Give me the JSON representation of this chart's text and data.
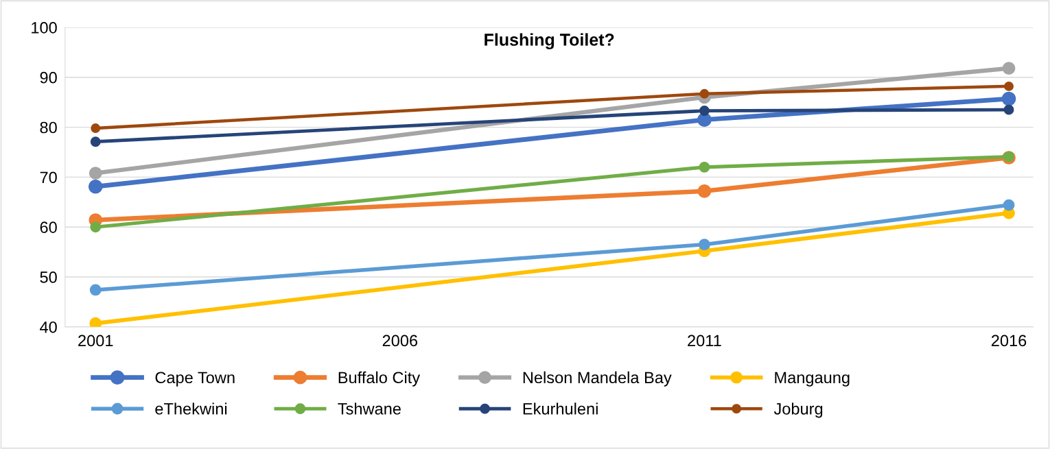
{
  "chart_data": {
    "type": "line",
    "title": "Flushing Toilet?",
    "x": [
      2001,
      2011,
      2016
    ],
    "xlim": [
      2000.5,
      2016.4
    ],
    "xticks": [
      2001,
      2006,
      2011,
      2016
    ],
    "ylim": [
      40,
      100
    ],
    "yticks": [
      40,
      50,
      60,
      70,
      80,
      90,
      100
    ],
    "grid": "y",
    "legend": "bottom",
    "marker": "circle",
    "line_style": "solid",
    "series": [
      {
        "name": "Cape Town",
        "color": "#4472c4",
        "values": [
          68.1,
          81.5,
          85.7
        ]
      },
      {
        "name": "Buffalo City",
        "color": "#ed7d31",
        "values": [
          61.4,
          67.2,
          73.9
        ]
      },
      {
        "name": "Nelson Mandela Bay",
        "color": "#a5a5a5",
        "values": [
          70.8,
          86,
          91.8
        ]
      },
      {
        "name": "Mangaung",
        "color": "#ffc000",
        "values": [
          40.7,
          55.2,
          62.8
        ]
      },
      {
        "name": "eThekwini",
        "color": "#5b9bd5",
        "values": [
          47.4,
          56.5,
          64.4
        ]
      },
      {
        "name": "Tshwane",
        "color": "#70ad47",
        "values": [
          60,
          72,
          74.1
        ]
      },
      {
        "name": "Ekurhuleni",
        "color": "#264478",
        "values": [
          77.1,
          83.3,
          83.5
        ]
      },
      {
        "name": "Joburg",
        "color": "#9e480e",
        "values": [
          79.8,
          86.7,
          88.2
        ]
      }
    ]
  }
}
